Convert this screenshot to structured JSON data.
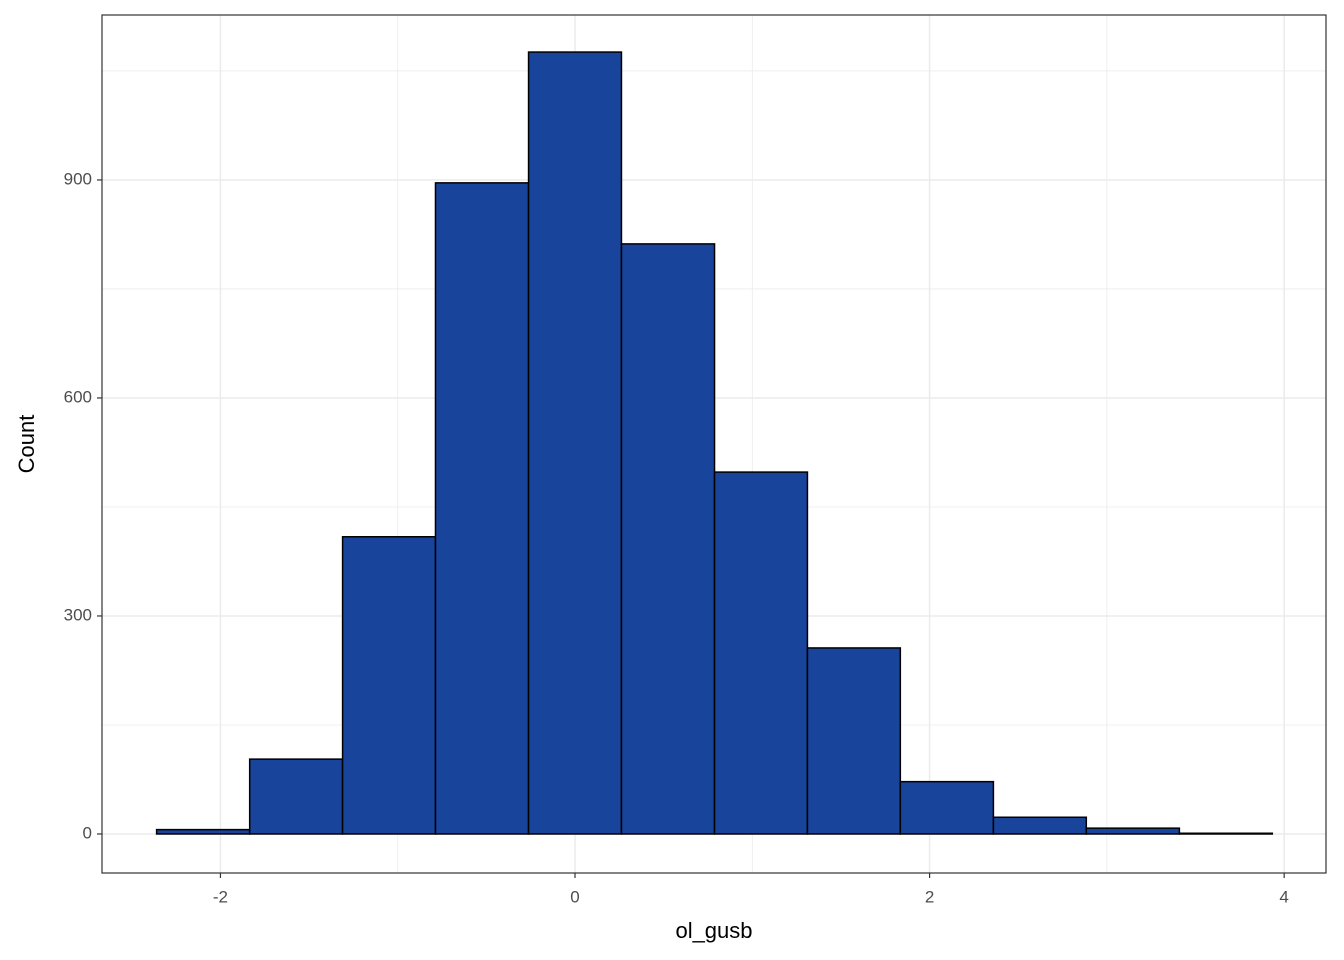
{
  "chart_data": {
    "type": "histogram",
    "x_label": "ol_gusb",
    "y_label": "Count",
    "bins": [
      -2.36,
      -1.835,
      -1.311,
      -0.787,
      -0.262,
      0.262,
      0.787,
      1.311,
      1.835,
      2.36,
      2.884,
      3.409,
      3.933
    ],
    "values": [
      6,
      103,
      409,
      896,
      1076,
      812,
      498,
      256,
      72,
      23,
      8,
      1
    ],
    "color": "#18449b",
    "edge_color": "#000000",
    "xlim": [
      -2.668,
      4.236
    ],
    "xticks": [
      -2,
      0,
      2,
      4
    ],
    "minor_xticks": [
      -1,
      1,
      3
    ],
    "ylim": [
      -53.7,
      1127
    ],
    "yticks": [
      0,
      300,
      600,
      900
    ],
    "minor_yticks": [
      150,
      450,
      750,
      1050
    ],
    "grid": true
  }
}
